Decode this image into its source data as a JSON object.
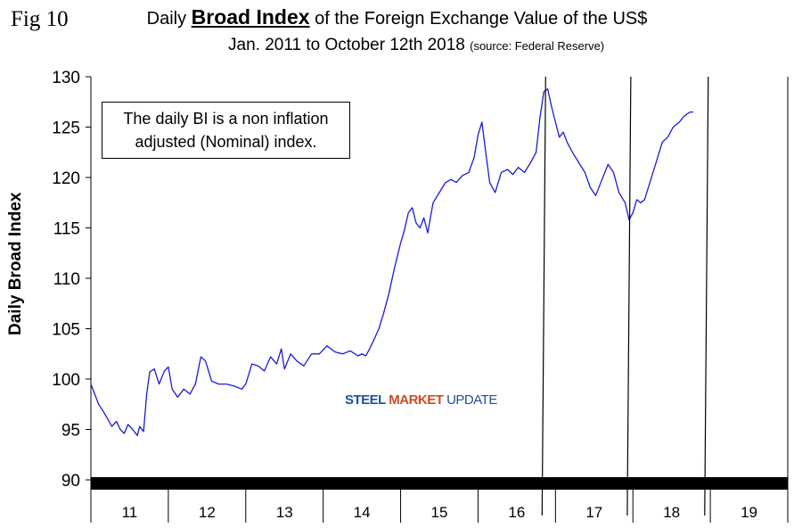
{
  "figure_label": "Fig 10",
  "title": {
    "prefix": "Daily",
    "emphasis": "Broad Index",
    "suffix": "of the Foreign Exchange Value of the US$"
  },
  "subtitle": {
    "text": "Jan. 2011 to October 12th 2018",
    "source": "(source: Federal Reserve)"
  },
  "note": {
    "line1": "The daily BI is a non inflation",
    "line2": "adjusted (Nominal) index."
  },
  "watermark": {
    "word1": "STEEL",
    "word2": "MARKET",
    "word3": "UPDATE"
  },
  "colors": {
    "series": "#1a1adb",
    "axis": "#000000",
    "grid": "#cccccc"
  },
  "chart_data": {
    "type": "line",
    "title": "Daily Broad Index of the Foreign Exchange Value of the US$",
    "xlabel": "",
    "ylabel": "Daily Broad Index",
    "ylim": [
      90,
      130
    ],
    "yticks": [
      90,
      95,
      100,
      105,
      110,
      115,
      120,
      125,
      130
    ],
    "xlim": [
      2011,
      2020
    ],
    "year_labels": [
      "11",
      "12",
      "13",
      "14",
      "15",
      "16",
      "17",
      "18",
      "19"
    ],
    "grid": false,
    "series": [
      {
        "name": "Daily Broad Index",
        "x": [
          2011.0,
          2011.05,
          2011.1,
          2011.16,
          2011.22,
          2011.27,
          2011.33,
          2011.38,
          2011.43,
          2011.48,
          2011.54,
          2011.6,
          2011.63,
          2011.68,
          2011.72,
          2011.76,
          2011.82,
          2011.88,
          2011.95,
          2012.0,
          2012.05,
          2012.12,
          2012.2,
          2012.28,
          2012.35,
          2012.42,
          2012.48,
          2012.56,
          2012.65,
          2012.75,
          2012.85,
          2012.95,
          2013.0,
          2013.08,
          2013.16,
          2013.24,
          2013.32,
          2013.4,
          2013.46,
          2013.5,
          2013.58,
          2013.66,
          2013.75,
          2013.85,
          2013.95,
          2014.05,
          2014.15,
          2014.25,
          2014.35,
          2014.45,
          2014.5,
          2014.55,
          2014.6,
          2014.65,
          2014.72,
          2014.78,
          2014.85,
          2014.92,
          2015.0,
          2015.05,
          2015.1,
          2015.15,
          2015.2,
          2015.25,
          2015.3,
          2015.35,
          2015.42,
          2015.5,
          2015.58,
          2015.65,
          2015.72,
          2015.8,
          2015.88,
          2015.95,
          2016.0,
          2016.05,
          2016.1,
          2016.15,
          2016.22,
          2016.3,
          2016.38,
          2016.45,
          2016.52,
          2016.6,
          2016.68,
          2016.75,
          2016.8,
          2016.85,
          2016.9,
          2016.95,
          2017.0,
          2017.05,
          2017.1,
          2017.15,
          2017.22,
          2017.3,
          2017.38,
          2017.45,
          2017.52,
          2017.6,
          2017.68,
          2017.75,
          2017.82,
          2017.9,
          2017.95,
          2018.0,
          2018.05,
          2018.1,
          2018.15,
          2018.22,
          2018.3,
          2018.38,
          2018.45,
          2018.52,
          2018.6,
          2018.65,
          2018.7,
          2018.74,
          2018.78
        ],
        "y": [
          99.5,
          98.5,
          97.5,
          96.8,
          96.0,
          95.3,
          95.8,
          95.0,
          94.6,
          95.5,
          95.0,
          94.4,
          95.3,
          94.8,
          98.5,
          100.7,
          101.0,
          99.5,
          100.8,
          101.2,
          99.0,
          98.2,
          99.0,
          98.5,
          99.5,
          102.2,
          101.8,
          99.8,
          99.5,
          99.5,
          99.3,
          99.0,
          99.5,
          101.5,
          101.3,
          100.8,
          102.2,
          101.5,
          103.0,
          101.0,
          102.5,
          101.8,
          101.3,
          102.5,
          102.5,
          103.3,
          102.7,
          102.5,
          102.8,
          102.3,
          102.5,
          102.3,
          103.0,
          103.8,
          105.0,
          106.5,
          108.5,
          111.0,
          113.5,
          114.8,
          116.5,
          117.0,
          115.5,
          115.0,
          116.0,
          114.5,
          117.5,
          118.5,
          119.5,
          119.8,
          119.5,
          120.2,
          120.5,
          122.0,
          124.2,
          125.5,
          122.5,
          119.5,
          118.5,
          120.5,
          120.8,
          120.3,
          121.0,
          120.5,
          121.5,
          122.5,
          126.0,
          128.5,
          128.8,
          127.0,
          125.5,
          124.0,
          124.5,
          123.5,
          122.5,
          121.5,
          120.5,
          119.0,
          118.2,
          119.8,
          121.3,
          120.5,
          118.5,
          117.5,
          115.8,
          116.5,
          117.8,
          117.5,
          117.8,
          119.5,
          121.5,
          123.5,
          124.0,
          125.0,
          125.5,
          126.0,
          126.3,
          126.5,
          126.5
        ]
      }
    ],
    "vertical_markers": [
      2016.85,
      2017.95,
      2018.95
    ]
  }
}
